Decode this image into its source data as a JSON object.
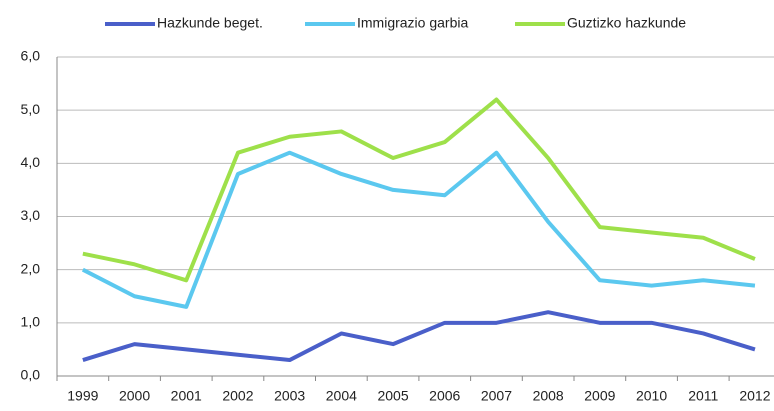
{
  "chart_data": {
    "type": "line",
    "categories": [
      "1999",
      "2000",
      "2001",
      "2002",
      "2003",
      "2004",
      "2005",
      "2006",
      "2007",
      "2008",
      "2009",
      "2010",
      "2011",
      "2012"
    ],
    "series": [
      {
        "name": "Hazkunde beget.",
        "color": "#4a5fc9",
        "values": [
          0.3,
          0.6,
          0.5,
          0.4,
          0.3,
          0.8,
          0.6,
          1.0,
          1.0,
          1.2,
          1.0,
          1.0,
          0.8,
          0.5
        ]
      },
      {
        "name": "Immigrazio garbia",
        "color": "#5bc8ef",
        "values": [
          2.0,
          1.5,
          1.3,
          3.8,
          4.2,
          3.8,
          3.5,
          3.4,
          4.2,
          2.9,
          1.8,
          1.7,
          1.8,
          1.7
        ]
      },
      {
        "name": "Guztizko hazkunde",
        "color": "#9ee04a",
        "values": [
          2.3,
          2.1,
          1.8,
          4.2,
          4.5,
          4.6,
          4.1,
          4.4,
          5.2,
          4.1,
          2.8,
          2.7,
          2.6,
          2.2
        ]
      }
    ],
    "ylim": [
      0,
      6
    ],
    "yticks": [
      {
        "value": 0,
        "label": "0,0"
      },
      {
        "value": 1,
        "label": "1,0"
      },
      {
        "value": 2,
        "label": "2,0"
      },
      {
        "value": 3,
        "label": "3,0"
      },
      {
        "value": 4,
        "label": "4,0"
      },
      {
        "value": 5,
        "label": "5,0"
      },
      {
        "value": 6,
        "label": "6,0"
      }
    ],
    "grid": true,
    "legend": "top"
  }
}
